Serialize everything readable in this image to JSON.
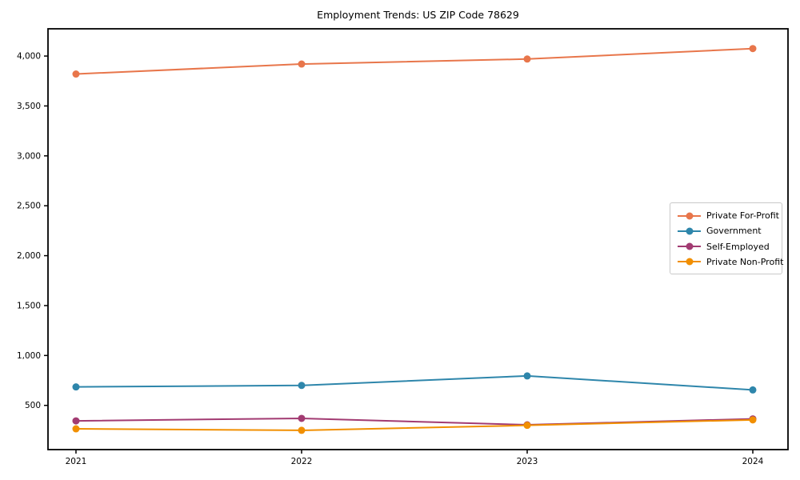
{
  "figure": {
    "background": "#ffffff",
    "text_color": "#000000",
    "axis_color": "#000000",
    "legend_border_color": "#c9c9c9"
  },
  "chart_data": {
    "type": "line",
    "title": "Employment Trends: US ZIP Code 78629",
    "xlabel": "",
    "ylabel": "",
    "x": [
      2021,
      2022,
      2023,
      2024
    ],
    "x_tick_labels": [
      "2021",
      "2022",
      "2023",
      "2024"
    ],
    "y_ticks": [
      500,
      1000,
      1500,
      2000,
      2500,
      3000,
      3500,
      4000
    ],
    "y_tick_labels": [
      "500",
      "1,000",
      "1,500",
      "2,000",
      "2,500",
      "3,000",
      "3,500",
      "4,000"
    ],
    "ylim": [
      57,
      4273
    ],
    "xlim": [
      2020.876,
      2024.156
    ],
    "grid": false,
    "legend_position": "center-right",
    "marker": "circle",
    "series": [
      {
        "name": "Private For-Profit",
        "color": "#E8764B",
        "values": [
          3820,
          3920,
          3970,
          4075
        ]
      },
      {
        "name": "Government",
        "color": "#2E86AB",
        "values": [
          685,
          700,
          795,
          655
        ]
      },
      {
        "name": "Self-Employed",
        "color": "#A23B72",
        "values": [
          345,
          370,
          305,
          365
        ]
      },
      {
        "name": "Private Non-Profit",
        "color": "#F18F01",
        "values": [
          265,
          250,
          300,
          355
        ]
      }
    ]
  }
}
